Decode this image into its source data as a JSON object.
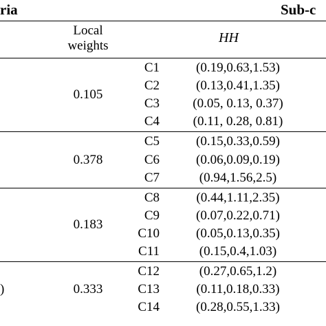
{
  "header": {
    "criteria_label": "ria",
    "subcriteria_label": "Sub-c",
    "local_weights_label": "Local\nweights",
    "hh_label": "HH"
  },
  "groups": [
    {
      "weight": "0.105",
      "rows": [
        {
          "code": "C1",
          "value": "(0.19,0.63,1.53)"
        },
        {
          "code": "C2",
          "value": "(0.13,0.41,1.35)"
        },
        {
          "code": "C3",
          "value": "(0.05, 0.13, 0.37)"
        },
        {
          "code": "C4",
          "value": "(0.11, 0.28, 0.81)"
        }
      ]
    },
    {
      "weight": "0.378",
      "rows": [
        {
          "code": "C5",
          "value": "(0.15,0.33,0.59)"
        },
        {
          "code": "C6",
          "value": "(0.06,0.09,0.19)"
        },
        {
          "code": "C7",
          "value": "(0.94,1.56,2.5)"
        }
      ]
    },
    {
      "weight": "0.183",
      "rows": [
        {
          "code": "C8",
          "value": "(0.44,1.11,2.35)"
        },
        {
          "code": "C9",
          "value": "(0.07,0.22,0.71)"
        },
        {
          "code": "C10",
          "value": "(0.05,0.13,0.35)"
        },
        {
          "code": "C11",
          "value": "(0.15,0.4,1.03)"
        }
      ]
    },
    {
      "weight": "0.333",
      "left_fragment": ")",
      "rows": [
        {
          "code": "C12",
          "value": "(0.27,0.65,1.2)"
        },
        {
          "code": "C13",
          "value": "(0.11,0.18,0.33)"
        },
        {
          "code": "C14",
          "value": "(0.28,0.55,1.33)"
        }
      ]
    }
  ]
}
